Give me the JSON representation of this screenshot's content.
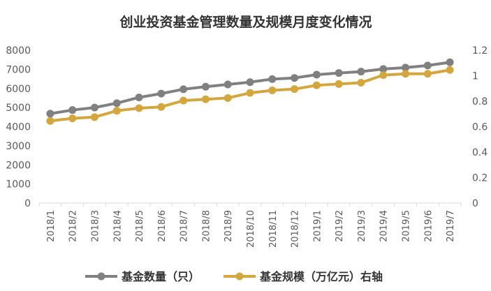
{
  "chart_data": {
    "type": "line",
    "title": "创业投资基金管理数量及规模月度变化情况",
    "categories": [
      "2018/1",
      "2018/2",
      "2018/3",
      "2018/4",
      "2018/5",
      "2018/6",
      "2018/7",
      "2018/8",
      "2018/9",
      "2018/10",
      "2018/11",
      "2018/12",
      "2019/1",
      "2019/2",
      "2019/3",
      "2019/4",
      "2019/5",
      "2019/6",
      "2019/7"
    ],
    "y_left": {
      "min": 0,
      "max": 8000,
      "ticks": [
        0,
        1000,
        2000,
        3000,
        4000,
        5000,
        6000,
        7000,
        8000
      ]
    },
    "y_right": {
      "min": 0,
      "max": 1.2,
      "ticks": [
        "0",
        "0.2",
        "0.4",
        "0.6",
        "0.8",
        "1",
        "1.2"
      ]
    },
    "grid": false,
    "legend_position": "bottom",
    "series": [
      {
        "name": "基金数量（只）",
        "axis": "left",
        "color": "#808080",
        "values": [
          4680,
          4870,
          5000,
          5230,
          5530,
          5730,
          5960,
          6090,
          6210,
          6330,
          6490,
          6550,
          6720,
          6810,
          6880,
          7020,
          7090,
          7200,
          7370
        ]
      },
      {
        "name": "基金规模（万亿元）右轴",
        "axis": "right",
        "color": "#D4A73E",
        "values": [
          0.645,
          0.665,
          0.675,
          0.725,
          0.745,
          0.755,
          0.805,
          0.815,
          0.825,
          0.865,
          0.885,
          0.895,
          0.925,
          0.935,
          0.945,
          1.005,
          1.015,
          1.015,
          1.045
        ]
      }
    ]
  }
}
